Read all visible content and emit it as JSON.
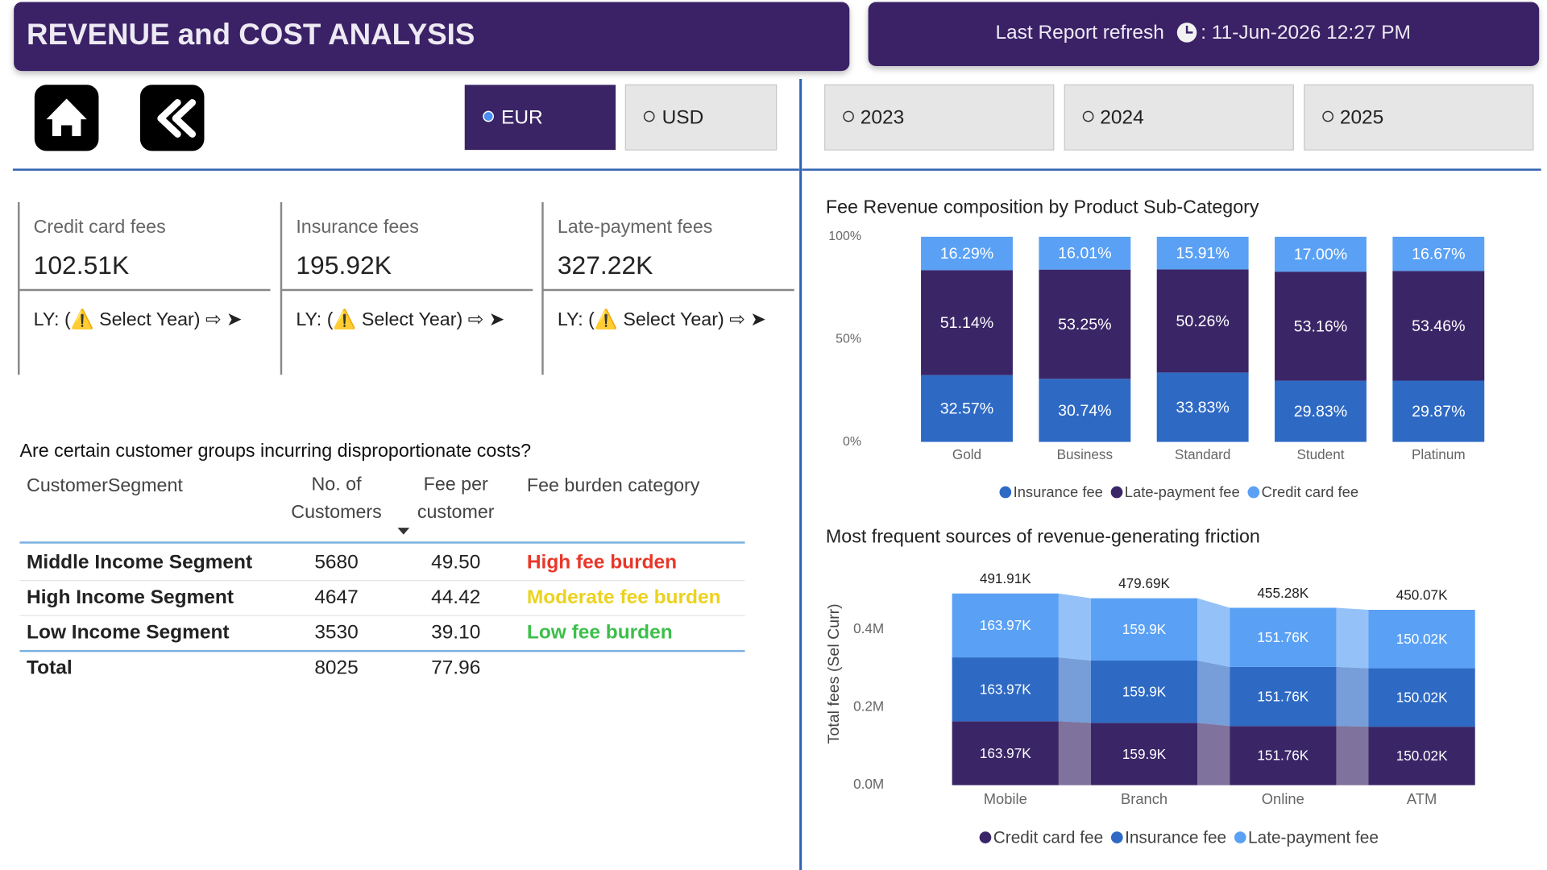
{
  "header": {
    "title": "REVENUE and COST ANALYSIS",
    "refresh_label": "Last Report refresh",
    "refresh_value": ": 11-Jun-2026 12:27 PM"
  },
  "currency": {
    "options": [
      "EUR",
      "USD"
    ],
    "selected": 0
  },
  "years": {
    "options": [
      "2023",
      "2024",
      "2025"
    ]
  },
  "kpis": [
    {
      "label": "Credit card fees",
      "value": "102.51K",
      "footer": "LY: (⚠️ Select Year) ⇨ ➤"
    },
    {
      "label": "Insurance fees",
      "value": "195.92K",
      "footer": "LY: (⚠️ Select Year) ⇨ ➤"
    },
    {
      "label": "Late-payment fees",
      "value": "327.22K",
      "footer": "LY: (⚠️ Select Year) ⇨ ➤"
    }
  ],
  "table": {
    "title": "Are certain customer groups incurring disproportionate costs?",
    "headers": [
      "CustomerSegment",
      "No. of Customers",
      "Fee per customer",
      "Fee burden category"
    ],
    "rows": [
      [
        "Middle Income Segment",
        "5680",
        "49.50",
        "High fee burden"
      ],
      [
        "High Income Segment",
        "4647",
        "44.42",
        "Moderate fee burden"
      ],
      [
        "Low Income Segment",
        "3530",
        "39.10",
        "Low fee burden"
      ]
    ],
    "burden_colors": [
      "#e8372a",
      "#ecd21e",
      "#3cbf4a"
    ],
    "total": [
      "Total",
      "8025",
      "77.96"
    ]
  },
  "chart_data": [
    {
      "type": "stacked_bar_100",
      "title": "Fee Revenue composition by Product Sub-Category",
      "categories": [
        "Gold",
        "Business",
        "Standard",
        "Student",
        "Platinum"
      ],
      "series": [
        {
          "name": "Insurance fee",
          "color": "#2e6ac4",
          "values": [
            32.57,
            30.74,
            33.83,
            29.83,
            29.87
          ],
          "value_labels": [
            "32.57%",
            "30.74%",
            "33.83%",
            "29.83%",
            "29.87%"
          ]
        },
        {
          "name": "Late-payment fee",
          "color": "#3a2667",
          "values": [
            51.14,
            53.25,
            50.26,
            53.16,
            53.46
          ],
          "value_labels": [
            "51.14%",
            "53.25%",
            "50.26%",
            "53.16%",
            "53.46%"
          ]
        },
        {
          "name": "Credit card fee",
          "color": "#5aa1f5",
          "values": [
            16.29,
            16.01,
            15.91,
            17.0,
            16.67
          ],
          "value_labels": [
            "16.29%",
            "16.01%",
            "15.91%",
            "17.00%",
            "16.67%"
          ]
        }
      ],
      "ylim": [
        0,
        100
      ],
      "yticks": [
        {
          "value": 0,
          "label": "0%"
        },
        {
          "value": 50,
          "label": "50%"
        },
        {
          "value": 100,
          "label": "100%"
        }
      ],
      "legend": "bottom"
    },
    {
      "type": "ribbon",
      "title": "Most frequent sources of revenue-generating friction",
      "y_label": "Total fees (Sel Curr)",
      "categories": [
        "Mobile",
        "Branch",
        "Online",
        "ATM"
      ],
      "series": [
        {
          "name": "Credit card fee",
          "color": "#3a2667",
          "values": [
            163970,
            159900,
            151760,
            150020
          ],
          "value_labels": [
            "163.97K",
            "159.9K",
            "151.76K",
            "150.02K"
          ]
        },
        {
          "name": "Insurance fee",
          "color": "#2e6ac4",
          "values": [
            163970,
            159900,
            151760,
            150020
          ],
          "value_labels": [
            "163.97K",
            "159.9K",
            "151.76K",
            "150.02K"
          ]
        },
        {
          "name": "Late-payment fee",
          "color": "#5aa1f5",
          "values": [
            163970,
            159900,
            151760,
            150020
          ],
          "value_labels": [
            "163.97K",
            "159.9K",
            "151.76K",
            "150.02K"
          ]
        }
      ],
      "totals": [
        491910,
        479690,
        455280,
        450070
      ],
      "total_labels": [
        "491.91K",
        "479.69K",
        "455.28K",
        "450.07K"
      ],
      "ylim": [
        0,
        500000
      ],
      "yticks": [
        {
          "value": 0,
          "label": "0.0M"
        },
        {
          "value": 200000,
          "label": "0.2M"
        },
        {
          "value": 400000,
          "label": "0.4M"
        }
      ],
      "legend": "bottom"
    }
  ]
}
